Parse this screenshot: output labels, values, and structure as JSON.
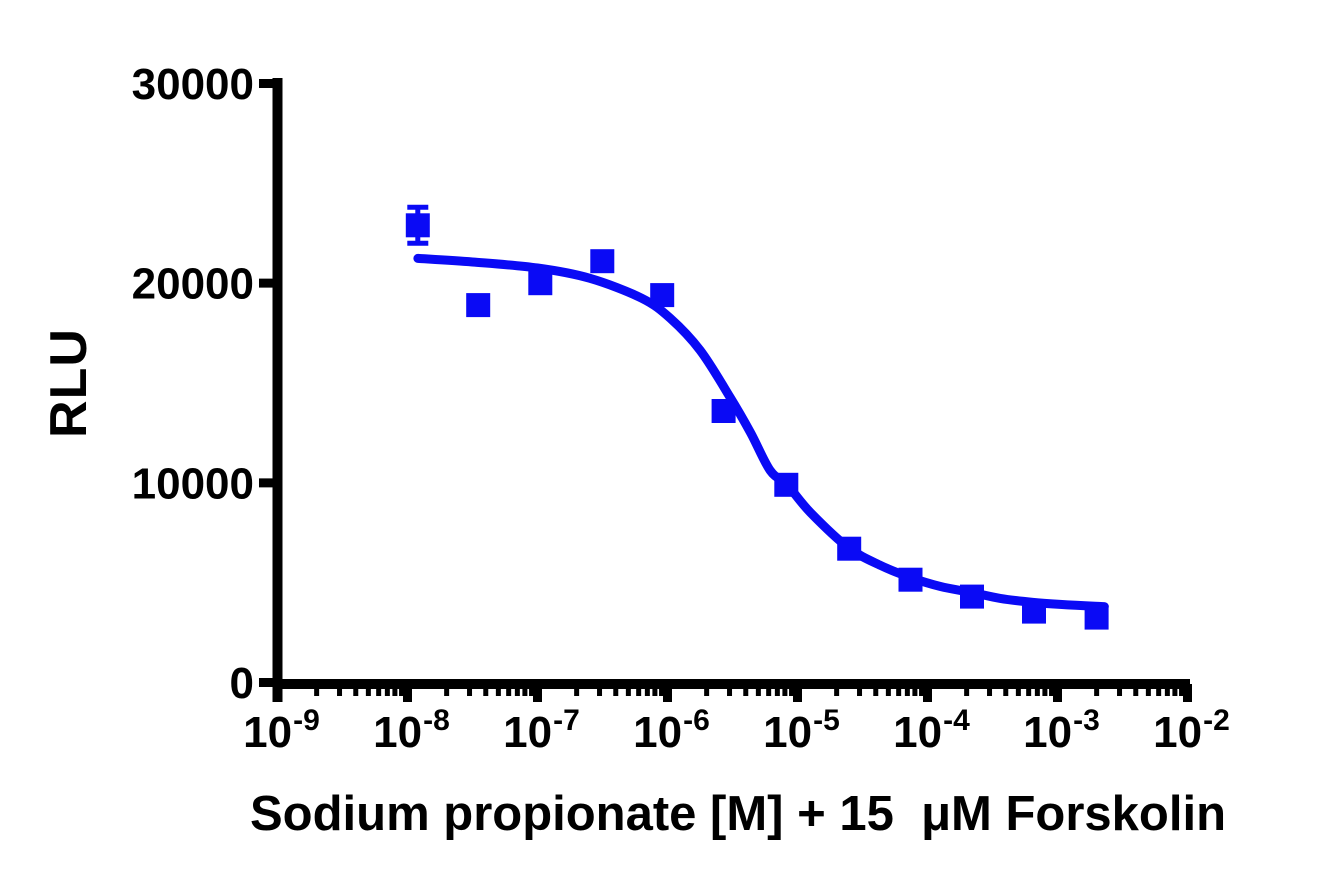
{
  "figure": {
    "background": "#FFFFFF"
  },
  "chart_data": {
    "type": "scatter",
    "title": "",
    "xlabel": "Sodium propionate [M] + 15  μM Forskolin",
    "ylabel": "RLU",
    "x_scale": "log10",
    "x_unit": "M",
    "xlim_log10": [
      -9,
      -2
    ],
    "x_tick_exponents": [
      -9,
      -8,
      -7,
      -6,
      -5,
      -4,
      -3,
      -2
    ],
    "ylim": [
      0,
      30000
    ],
    "y_ticks": [
      0,
      10000,
      20000,
      30000
    ],
    "grid": false,
    "legend": "none",
    "axis_color": "#000000",
    "series": [
      {
        "marker": "square",
        "color": "#0A0AF5",
        "points": [
          {
            "x_M": 1.2e-08,
            "y_RLU": 22900,
            "y_err_RLU": 900
          },
          {
            "x_M": 3.5e-08,
            "y_RLU": 18900
          },
          {
            "x_M": 1.05e-07,
            "y_RLU": 20000
          },
          {
            "x_M": 3.15e-07,
            "y_RLU": 21100
          },
          {
            "x_M": 9.1e-07,
            "y_RLU": 19400
          },
          {
            "x_M": 2.7e-06,
            "y_RLU": 13600
          },
          {
            "x_M": 8.2e-06,
            "y_RLU": 9900
          },
          {
            "x_M": 2.5e-05,
            "y_RLU": 6700
          },
          {
            "x_M": 7.4e-05,
            "y_RLU": 5150
          },
          {
            "x_M": 0.00022,
            "y_RLU": 4300
          },
          {
            "x_M": 0.00066,
            "y_RLU": 3550
          },
          {
            "x_M": 0.002,
            "y_RLU": 3250
          }
        ]
      }
    ],
    "fit_curve": {
      "color": "#0A0AF5",
      "log10_x": [
        -7.92,
        -7.5,
        -7.0,
        -6.6,
        -6.2,
        -5.98,
        -5.75,
        -5.52,
        -5.36,
        -5.21,
        -5.08,
        -4.9,
        -4.61,
        -4.36,
        -4.13,
        -3.9,
        -3.66,
        -3.44,
        -3.19,
        -2.98,
        -2.71,
        -2.64
      ],
      "rlu": [
        21240,
        21060,
        20760,
        20250,
        19250,
        18250,
        16650,
        14300,
        12500,
        10620,
        9900,
        8510,
        6760,
        5860,
        5260,
        4810,
        4510,
        4210,
        4010,
        3910,
        3820,
        3800
      ]
    }
  }
}
